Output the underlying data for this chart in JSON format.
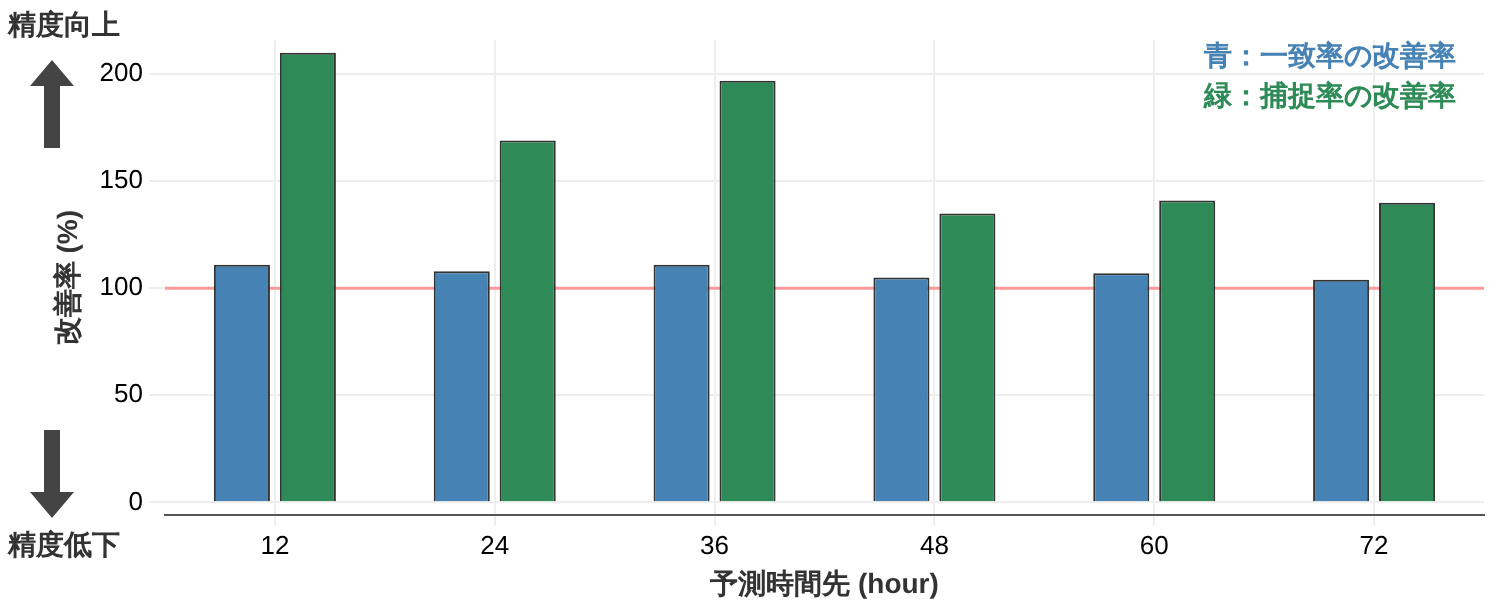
{
  "chart_data": {
    "type": "bar",
    "xlabel": "予測時間先 (hour)",
    "ylabel": "改善率 (%)",
    "categories": [
      "12",
      "24",
      "36",
      "48",
      "60",
      "72"
    ],
    "series": [
      {
        "name": "青：一致率の改善率",
        "color": "#4682b4",
        "values": [
          111,
          108,
          111,
          105,
          107,
          104
        ]
      },
      {
        "name": "緑：捕捉率の改善率",
        "color": "#2e8b57",
        "values": [
          210,
          169,
          197,
          135,
          141,
          140
        ]
      }
    ],
    "ylim": [
      -6,
      216
    ],
    "yticks": [
      0,
      50,
      100,
      150,
      200
    ],
    "grid": true,
    "legend": "top right",
    "ref_lines": [
      {
        "axis": "y",
        "value": 100,
        "color": "#ff9999"
      }
    ],
    "annotations": [
      "精度向上",
      "精度低下"
    ]
  }
}
